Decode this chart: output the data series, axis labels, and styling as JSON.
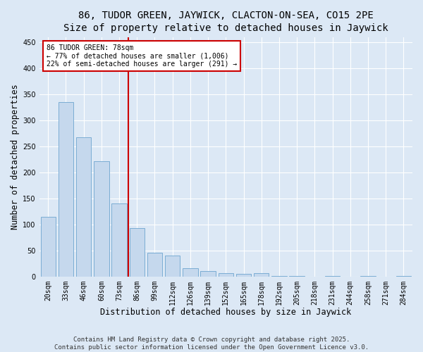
{
  "title": "86, TUDOR GREEN, JAYWICK, CLACTON-ON-SEA, CO15 2PE",
  "subtitle": "Size of property relative to detached houses in Jaywick",
  "xlabel": "Distribution of detached houses by size in Jaywick",
  "ylabel": "Number of detached properties",
  "categories": [
    "20sqm",
    "33sqm",
    "46sqm",
    "60sqm",
    "73sqm",
    "86sqm",
    "99sqm",
    "112sqm",
    "126sqm",
    "139sqm",
    "152sqm",
    "165sqm",
    "178sqm",
    "192sqm",
    "205sqm",
    "218sqm",
    "231sqm",
    "244sqm",
    "258sqm",
    "271sqm",
    "284sqm"
  ],
  "values": [
    115,
    335,
    268,
    222,
    140,
    93,
    46,
    40,
    16,
    10,
    6,
    5,
    6,
    1,
    1,
    0,
    1,
    0,
    1,
    0,
    1
  ],
  "bar_color": "#c5d8ed",
  "bar_edge_color": "#7badd4",
  "marker_index": 5,
  "marker_label": "86 TUDOR GREEN: 78sqm",
  "annotation_line1": "← 77% of detached houses are smaller (1,006)",
  "annotation_line2": "22% of semi-detached houses are larger (291) →",
  "annotation_box_color": "#ffffff",
  "annotation_box_edge_color": "#cc0000",
  "marker_line_color": "#cc0000",
  "ylim": [
    0,
    460
  ],
  "yticks": [
    0,
    50,
    100,
    150,
    200,
    250,
    300,
    350,
    400,
    450
  ],
  "bg_color": "#dce8f5",
  "plot_bg_color": "#dce8f5",
  "footer_line1": "Contains HM Land Registry data © Crown copyright and database right 2025.",
  "footer_line2": "Contains public sector information licensed under the Open Government Licence v3.0.",
  "title_fontsize": 10,
  "axis_label_fontsize": 8.5,
  "tick_fontsize": 7,
  "footer_fontsize": 6.5
}
